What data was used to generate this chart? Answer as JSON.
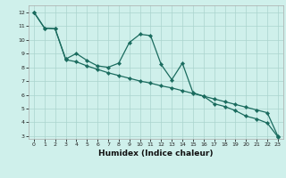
{
  "title": "",
  "xlabel": "Humidex (Indice chaleur)",
  "ylabel": "",
  "bg_color": "#cff0eb",
  "grid_color": "#aad4ce",
  "line_color": "#1a6b5e",
  "xlim": [
    -0.5,
    23.5
  ],
  "ylim": [
    2.8,
    12.5
  ],
  "xticks": [
    0,
    1,
    2,
    3,
    4,
    5,
    6,
    7,
    8,
    9,
    10,
    11,
    12,
    13,
    14,
    15,
    16,
    17,
    18,
    19,
    20,
    21,
    22,
    23
  ],
  "yticks": [
    3,
    4,
    5,
    6,
    7,
    8,
    9,
    10,
    11,
    12
  ],
  "series1_x": [
    0,
    1,
    2,
    3,
    4,
    5,
    6,
    7,
    8,
    9,
    10,
    11,
    12,
    13,
    14,
    15,
    16,
    17,
    18,
    19,
    20,
    21,
    22,
    23
  ],
  "series1_y": [
    12.0,
    10.85,
    10.8,
    8.6,
    9.0,
    8.5,
    8.1,
    8.0,
    8.3,
    9.8,
    10.4,
    10.3,
    8.2,
    7.1,
    8.3,
    6.15,
    5.9,
    5.35,
    5.15,
    4.85,
    4.45,
    4.25,
    3.95,
    2.95
  ],
  "series2_x": [
    0,
    1,
    2,
    3,
    4,
    5,
    6,
    7,
    8,
    9,
    10,
    11,
    12,
    13,
    14,
    15,
    16,
    17,
    18,
    19,
    20,
    21,
    22,
    23
  ],
  "series2_y": [
    12.0,
    10.85,
    10.8,
    8.55,
    8.4,
    8.1,
    7.85,
    7.6,
    7.4,
    7.2,
    7.0,
    6.85,
    6.65,
    6.5,
    6.3,
    6.1,
    5.9,
    5.7,
    5.5,
    5.3,
    5.1,
    4.9,
    4.7,
    3.0
  ],
  "xlabel_fontsize": 6.5,
  "tick_fontsize": 4.5,
  "linewidth": 0.9,
  "markersize": 2.2
}
